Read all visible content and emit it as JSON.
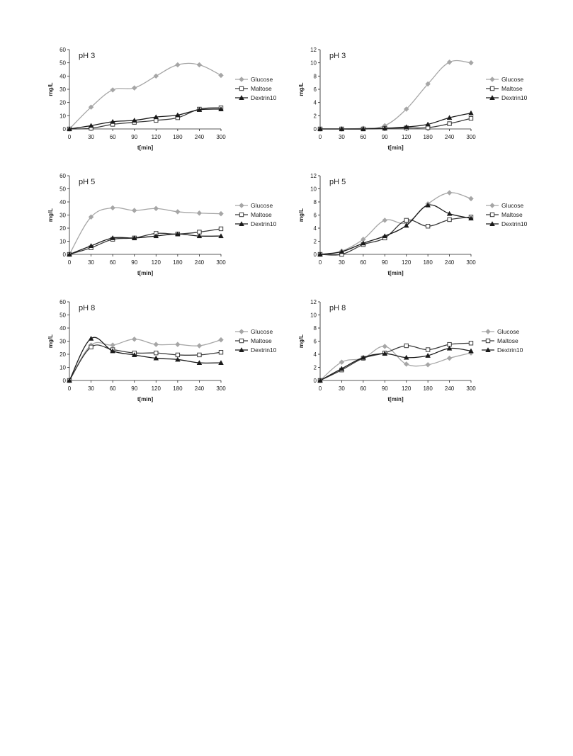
{
  "chart_data": [
    {
      "type": "line",
      "title": "pH 3",
      "xlabel": "t[min]",
      "ylabel": "mg/L",
      "categories": [
        "0",
        "30",
        "60",
        "90",
        "120",
        "180",
        "240",
        "300"
      ],
      "ylim": [
        0,
        60
      ],
      "yticks": [
        0,
        10,
        20,
        30,
        40,
        50,
        60
      ],
      "grid": false,
      "legend": "right",
      "series": [
        {
          "name": "Glucose",
          "marker": "diamond",
          "color": "#a6a6a6",
          "values": [
            0,
            16.5,
            29.5,
            31,
            40,
            48.5,
            48.5,
            40.5
          ]
        },
        {
          "name": "Maltose",
          "marker": "square",
          "color": "#3a3a3a",
          "values": [
            0,
            0.5,
            3.5,
            5,
            6.5,
            8.5,
            15,
            16
          ]
        },
        {
          "name": "Dextrin10",
          "marker": "triangle",
          "color": "#1a1a1a",
          "values": [
            0,
            2.5,
            5.5,
            6.5,
            9,
            10.5,
            14.5,
            15
          ]
        }
      ]
    },
    {
      "type": "line",
      "title": "pH 3",
      "xlabel": "t[min]",
      "ylabel": "mg/L",
      "categories": [
        "0",
        "30",
        "60",
        "90",
        "120",
        "180",
        "240",
        "300"
      ],
      "ylim": [
        0,
        12
      ],
      "yticks": [
        0,
        2,
        4,
        6,
        8,
        10,
        12
      ],
      "grid": false,
      "legend": "right",
      "series": [
        {
          "name": "Glucose",
          "marker": "diamond",
          "color": "#a6a6a6",
          "values": [
            0,
            0,
            0.1,
            0.5,
            3,
            6.8,
            10.1,
            10
          ]
        },
        {
          "name": "Maltose",
          "marker": "square",
          "color": "#3a3a3a",
          "values": [
            0,
            0,
            0,
            0.1,
            0.15,
            0.2,
            0.8,
            1.6
          ]
        },
        {
          "name": "Dextrin10",
          "marker": "triangle",
          "color": "#1a1a1a",
          "values": [
            0,
            0,
            0,
            0.1,
            0.3,
            0.7,
            1.7,
            2.4
          ]
        }
      ]
    },
    {
      "type": "line",
      "title": "pH 5",
      "xlabel": "t[min]",
      "ylabel": "mg/L",
      "categories": [
        "0",
        "30",
        "60",
        "90",
        "120",
        "180",
        "240",
        "300"
      ],
      "ylim": [
        0,
        60
      ],
      "yticks": [
        0,
        10,
        20,
        30,
        40,
        50,
        60
      ],
      "grid": false,
      "legend": "right",
      "series": [
        {
          "name": "Glucose",
          "marker": "diamond",
          "color": "#a6a6a6",
          "values": [
            0,
            28.5,
            35.5,
            33.5,
            35,
            32.5,
            31.5,
            31
          ]
        },
        {
          "name": "Maltose",
          "marker": "square",
          "color": "#3a3a3a",
          "values": [
            0,
            5,
            11.5,
            12.5,
            16,
            15.5,
            17,
            19.5
          ]
        },
        {
          "name": "Dextrin10",
          "marker": "triangle",
          "color": "#1a1a1a",
          "values": [
            0,
            6.5,
            12.5,
            12.5,
            14,
            15.5,
            14,
            14
          ]
        }
      ]
    },
    {
      "type": "line",
      "title": "pH 5",
      "xlabel": "t[min]",
      "ylabel": "mg/L",
      "categories": [
        "0",
        "30",
        "60",
        "90",
        "120",
        "180",
        "240",
        "300"
      ],
      "ylim": [
        0,
        12
      ],
      "yticks": [
        0,
        2,
        4,
        6,
        8,
        10,
        12
      ],
      "grid": false,
      "legend": "right",
      "series": [
        {
          "name": "Glucose",
          "marker": "diamond",
          "color": "#a6a6a6",
          "values": [
            0,
            0.5,
            2.3,
            5.2,
            4.8,
            7.7,
            9.4,
            8.5
          ]
        },
        {
          "name": "Maltose",
          "marker": "square",
          "color": "#3a3a3a",
          "values": [
            0,
            0,
            1.5,
            2.5,
            5.2,
            4.3,
            5.3,
            5.7
          ]
        },
        {
          "name": "Dextrin10",
          "marker": "triangle",
          "color": "#1a1a1a",
          "values": [
            0,
            0.4,
            1.7,
            2.8,
            4.4,
            7.5,
            6.2,
            5.5
          ]
        }
      ]
    },
    {
      "type": "line",
      "title": "pH 8",
      "xlabel": "t[min]",
      "ylabel": "mg/L",
      "categories": [
        "0",
        "30",
        "60",
        "90",
        "120",
        "180",
        "240",
        "300"
      ],
      "ylim": [
        0,
        60
      ],
      "yticks": [
        0,
        10,
        20,
        30,
        40,
        50,
        60
      ],
      "grid": false,
      "legend": "right",
      "series": [
        {
          "name": "Glucose",
          "marker": "diamond",
          "color": "#a6a6a6",
          "values": [
            0,
            27,
            27,
            31.5,
            27.5,
            27.5,
            26.5,
            31
          ]
        },
        {
          "name": "Maltose",
          "marker": "square",
          "color": "#3a3a3a",
          "values": [
            0,
            25.5,
            23.5,
            21,
            21,
            19.5,
            19.5,
            21.5
          ]
        },
        {
          "name": "Dextrin10",
          "marker": "triangle",
          "color": "#1a1a1a",
          "values": [
            0,
            32,
            22.5,
            19.5,
            17,
            16,
            13.5,
            13.5
          ]
        }
      ]
    },
    {
      "type": "line",
      "title": "pH 8",
      "xlabel": "t[min]",
      "ylabel": "mg/L",
      "categories": [
        "0",
        "30",
        "60",
        "90",
        "120",
        "180",
        "240",
        "300"
      ],
      "ylim": [
        0,
        12
      ],
      "yticks": [
        0,
        2,
        4,
        6,
        8,
        10,
        12
      ],
      "grid": false,
      "legend": "right",
      "series": [
        {
          "name": "Glucose",
          "marker": "diamond",
          "color": "#a6a6a6",
          "values": [
            0,
            2.8,
            3.4,
            5.2,
            2.5,
            2.4,
            3.4,
            4.2
          ]
        },
        {
          "name": "Maltose",
          "marker": "square",
          "color": "#3a3a3a",
          "values": [
            0,
            1.6,
            3.4,
            4.2,
            5.3,
            4.7,
            5.5,
            5.7
          ]
        },
        {
          "name": "Dextrin10",
          "marker": "triangle",
          "color": "#1a1a1a",
          "values": [
            0,
            1.8,
            3.5,
            4.1,
            3.5,
            3.8,
            4.9,
            4.5
          ]
        }
      ]
    }
  ]
}
